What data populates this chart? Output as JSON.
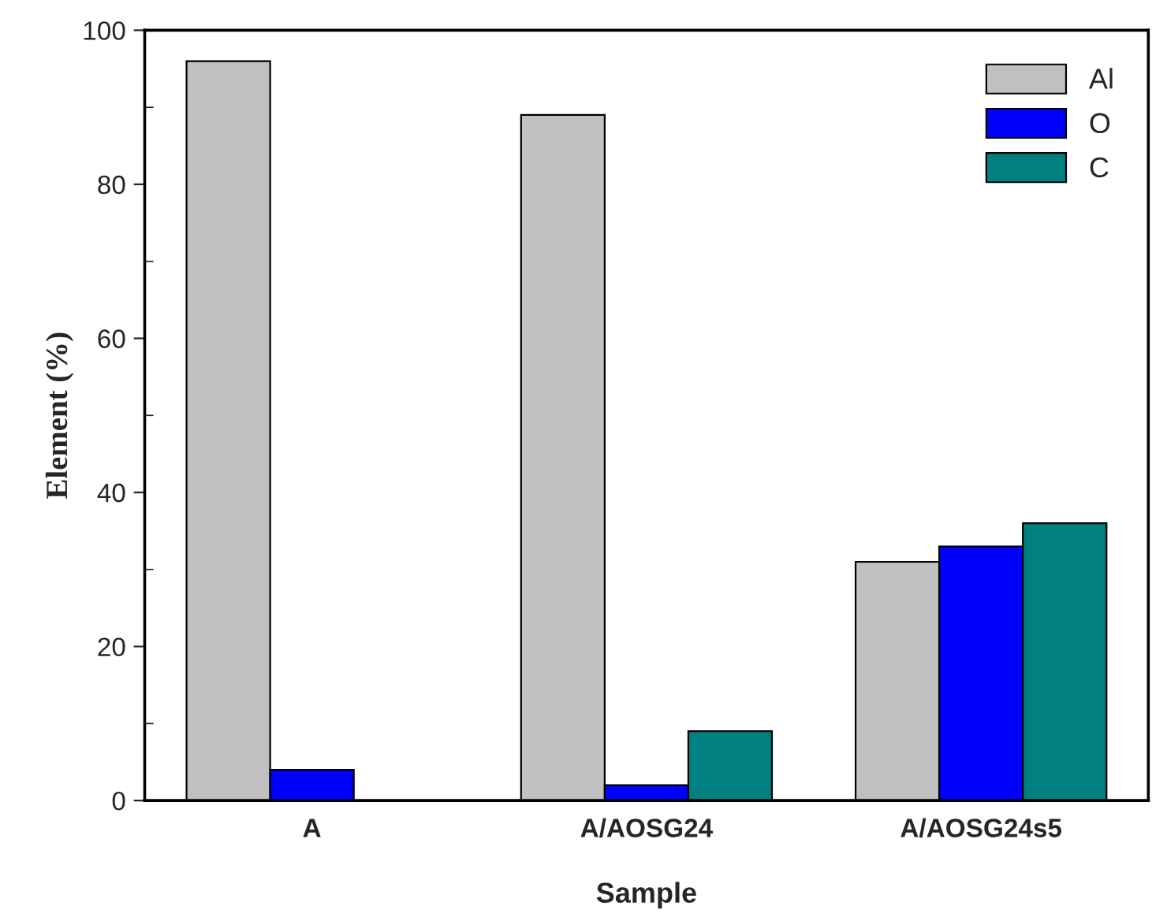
{
  "chart_data": {
    "type": "bar",
    "xlabel": "Sample",
    "ylabel": "Element (%)",
    "categories": [
      "A",
      "A/AOSG24",
      "A/AOSG24s5"
    ],
    "series": [
      {
        "name": "Al",
        "color": "#c0c0c0",
        "values": [
          96,
          89,
          31
        ]
      },
      {
        "name": "O",
        "color": "#0000ff",
        "values": [
          4,
          2,
          33
        ]
      },
      {
        "name": "C",
        "color": "#008080",
        "values": [
          null,
          9,
          36
        ]
      }
    ],
    "ylim": [
      0,
      100
    ],
    "yticks": [
      0,
      20,
      40,
      60,
      80,
      100
    ],
    "grid": false,
    "legend": "top right"
  }
}
